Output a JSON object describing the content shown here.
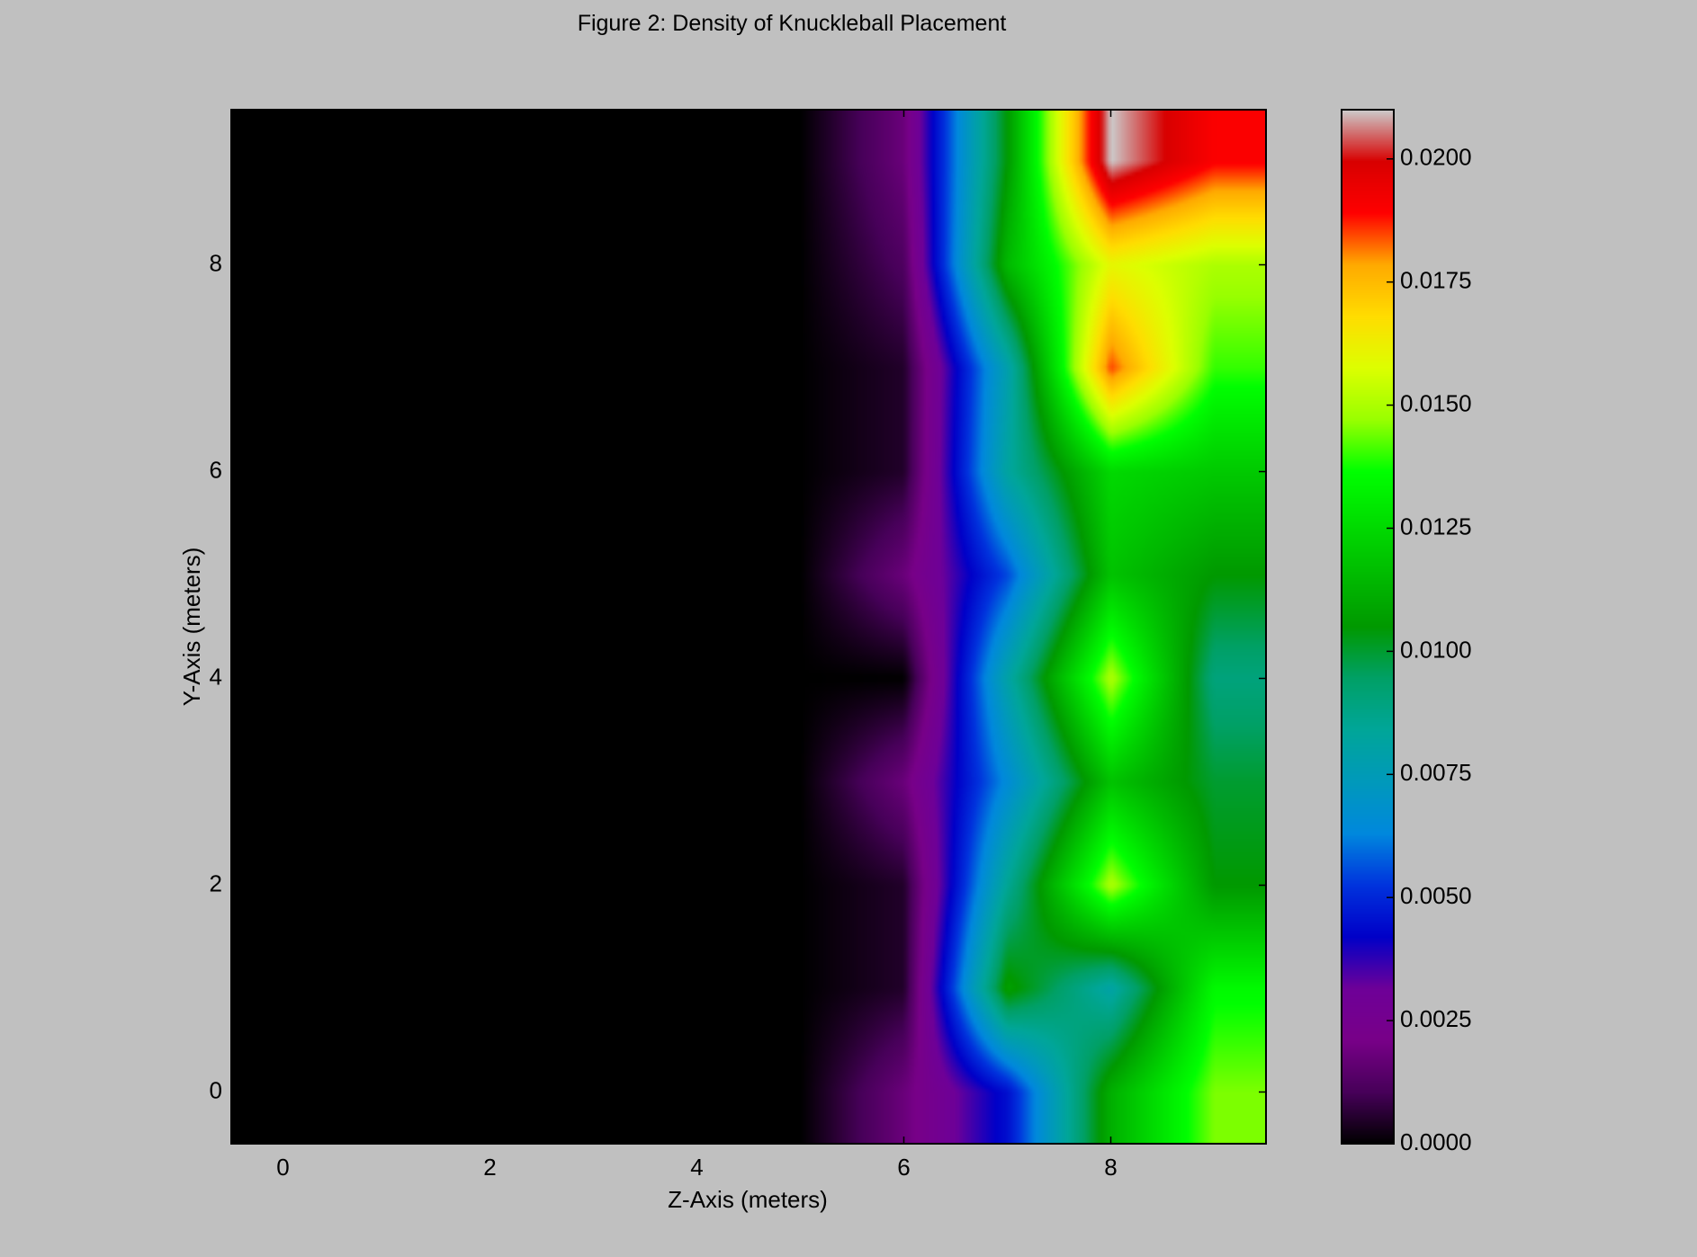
{
  "chart_data": {
    "type": "heatmap",
    "title": "Figure 2: Density of Knuckleball Placement",
    "xlabel": "Z-Axis (meters)",
    "ylabel": "Y-Axis (meters)",
    "x": [
      0,
      1,
      2,
      3,
      4,
      5,
      6,
      7,
      8,
      9
    ],
    "y": [
      0,
      1,
      2,
      3,
      4,
      5,
      6,
      7,
      8,
      9
    ],
    "xlim": [
      -0.5,
      9.5
    ],
    "ylim": [
      -0.5,
      9.5
    ],
    "xticks": [
      "0",
      "2",
      "4",
      "6",
      "8"
    ],
    "yticks": [
      "0",
      "2",
      "4",
      "6",
      "8"
    ],
    "interpolation": "bilinear",
    "values": [
      [
        0,
        0,
        0,
        0,
        0,
        0,
        0.0018,
        0.0045,
        0.0112,
        0.0145
      ],
      [
        0,
        0,
        0,
        0,
        0,
        0,
        0.0005,
        0.0108,
        0.008,
        0.0135
      ],
      [
        0,
        0,
        0,
        0,
        0,
        0,
        0.0005,
        0.0085,
        0.015,
        0.0105
      ],
      [
        0,
        0,
        0,
        0,
        0,
        0,
        0.0018,
        0.0065,
        0.0118,
        0.01
      ],
      [
        0,
        0,
        0,
        0,
        0,
        0,
        0.0,
        0.008,
        0.015,
        0.009
      ],
      [
        0,
        0,
        0,
        0,
        0,
        0,
        0.0018,
        0.0055,
        0.0118,
        0.0105
      ],
      [
        0,
        0,
        0,
        0,
        0,
        0,
        0.0005,
        0.0082,
        0.0125,
        0.012
      ],
      [
        0,
        0,
        0,
        0,
        0,
        0,
        0.0005,
        0.0078,
        0.0185,
        0.014
      ],
      [
        0,
        0,
        0,
        0,
        0,
        0,
        0.0012,
        0.0115,
        0.016,
        0.015
      ],
      [
        0,
        0,
        0,
        0,
        0,
        0,
        0.0018,
        0.0105,
        0.021,
        0.019
      ]
    ],
    "colorbar": {
      "min": 0.0,
      "max": 0.021,
      "ticks": [
        "0.0000",
        "0.0025",
        "0.0050",
        "0.0075",
        "0.0100",
        "0.0125",
        "0.0150",
        "0.0175",
        "0.0200"
      ],
      "colormap": "nipy_spectral",
      "colormap_stops": [
        [
          0.0,
          "#000000"
        ],
        [
          0.05,
          "#470059"
        ],
        [
          0.1,
          "#780088"
        ],
        [
          0.15,
          "#6e0098"
        ],
        [
          0.2,
          "#0000c8"
        ],
        [
          0.25,
          "#0033dd"
        ],
        [
          0.3,
          "#0088dd"
        ],
        [
          0.35,
          "#0099bb"
        ],
        [
          0.4,
          "#00a699"
        ],
        [
          0.45,
          "#00a066"
        ],
        [
          0.5,
          "#009900"
        ],
        [
          0.55,
          "#00bb00"
        ],
        [
          0.6,
          "#00dd00"
        ],
        [
          0.65,
          "#00ff00"
        ],
        [
          0.7,
          "#99ff00"
        ],
        [
          0.75,
          "#ddff00"
        ],
        [
          0.8,
          "#ffdd00"
        ],
        [
          0.85,
          "#ffaa00"
        ],
        [
          0.9,
          "#ff0000"
        ],
        [
          0.95,
          "#d80000"
        ],
        [
          1.0,
          "#cccccc"
        ]
      ]
    }
  }
}
